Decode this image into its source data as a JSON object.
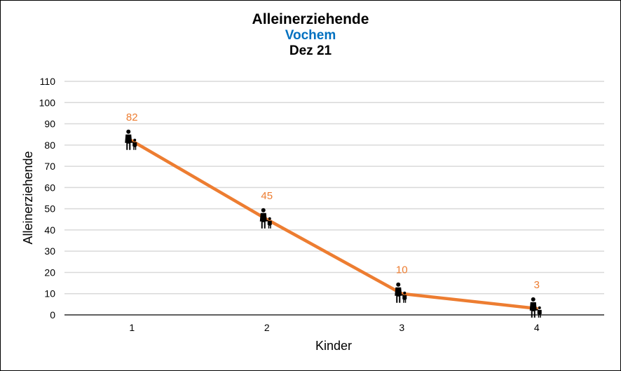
{
  "chart_data": {
    "type": "line",
    "title": "Alleinerziehende",
    "subtitle": "Vochem",
    "subtitle2": "Dez 21",
    "xlabel": "Kinder",
    "ylabel": "Alleinerziehende",
    "categories": [
      "1",
      "2",
      "3",
      "4"
    ],
    "series": [
      {
        "values": [
          82,
          45,
          10,
          3
        ]
      }
    ],
    "data_labels": [
      "82",
      "45",
      "10",
      "3"
    ],
    "ylim": [
      0,
      110
    ],
    "yticks": [
      0,
      10,
      20,
      30,
      40,
      50,
      60,
      70,
      80,
      90,
      100,
      110
    ],
    "ytick_labels": [
      "0",
      "10",
      "20",
      "30",
      "40",
      "50",
      "60",
      "70",
      "80",
      "90",
      "100",
      "110"
    ],
    "grid": true,
    "legend": "none",
    "marker_icon": "parent-with-child-icon",
    "colors": {
      "line": "#ed7d31",
      "data_label": "#ed7d31",
      "subtitle": "#0070c0",
      "grid": "#d9d9d9",
      "marker": "#000000"
    }
  }
}
